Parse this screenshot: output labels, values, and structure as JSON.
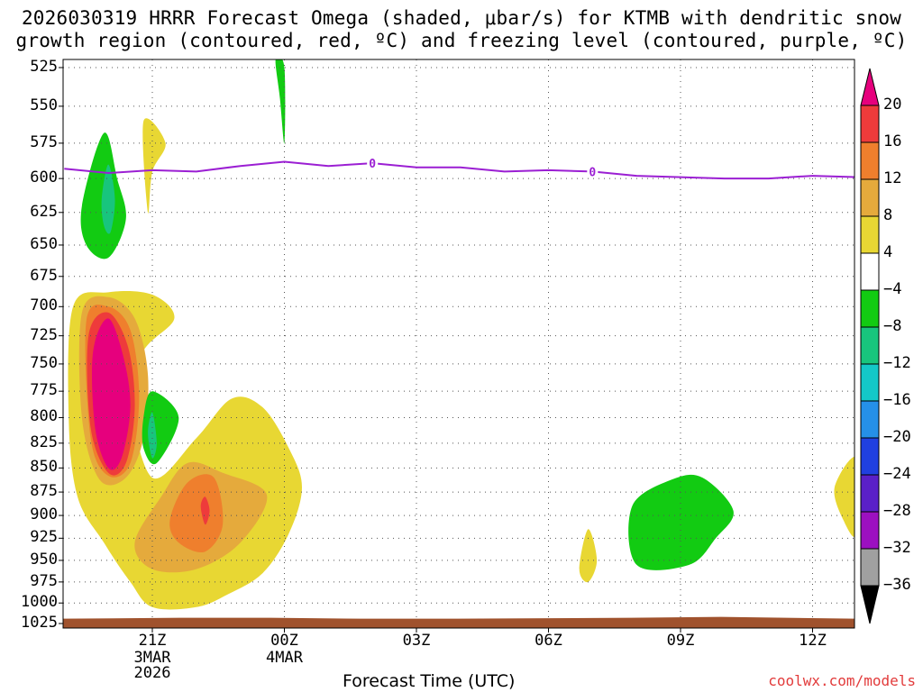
{
  "header": {
    "title_line1": "2026030319 HRRR Forecast Omega (shaded, μbar/s) for KTMB with dendritic snow",
    "title_line2": "growth region (contoured, red, ºC) and freezing level (contoured, purple, ºC)"
  },
  "footer": {
    "xaxis_title": "Forecast Time (UTC)",
    "credit": "coolwx.com/models"
  },
  "chart_data": {
    "type": "heatmap",
    "title": "2026030319 HRRR Forecast Omega (shaded, μbar/s) for KTMB with dendritic snow growth region (contoured, red, ºC) and freezing level (contoured, purple, ºC)",
    "xlabel": "Forecast Time (UTC)",
    "ylabel": "",
    "x_ticks": [
      {
        "hour": 2,
        "label": "21Z",
        "sub1": "3MAR",
        "sub2": "2026"
      },
      {
        "hour": 5,
        "label": "00Z",
        "sub1": "4MAR",
        "sub2": ""
      },
      {
        "hour": 8,
        "label": "03Z",
        "sub1": "",
        "sub2": ""
      },
      {
        "hour": 11,
        "label": "06Z",
        "sub1": "",
        "sub2": ""
      },
      {
        "hour": 14,
        "label": "09Z",
        "sub1": "",
        "sub2": ""
      },
      {
        "hour": 17,
        "label": "12Z",
        "sub1": "",
        "sub2": ""
      }
    ],
    "x_range_hours": [
      0,
      18
    ],
    "y_ticks": [
      525,
      550,
      575,
      600,
      625,
      650,
      675,
      700,
      725,
      750,
      775,
      800,
      825,
      850,
      875,
      900,
      925,
      950,
      975,
      1000,
      1025
    ],
    "y_range_hpa": [
      1025,
      520
    ],
    "y_scale": "log-pressure",
    "grid": true,
    "colorbar": {
      "labels": [
        "20",
        "16",
        "12",
        "8",
        "4",
        "−4",
        "−8",
        "−12",
        "−16",
        "−20",
        "−24",
        "−28",
        "−32",
        "−36"
      ],
      "colors": [
        "#e6007d",
        "#ee3b3b",
        "#ef7f2d",
        "#e5aa3c",
        "#e8d733",
        "#ffffff",
        "#12cb12",
        "#18c57d",
        "#14c8c8",
        "#2590e8",
        "#2040e0",
        "#5a20c8",
        "#9c10c0",
        "#a0a0a0"
      ]
    },
    "fill_colors": {
      "omega_4_8": "#e8d733",
      "omega_8_12": "#e5aa3c",
      "omega_12_16": "#ef7f2d",
      "omega_16_20": "#ee3b3b",
      "omega_gt_20": "#e6007d",
      "omega_m4_m8": "#12cb12",
      "omega_m8_m12": "#18c57d",
      "omega_m12_m16": "#14c8c8",
      "terrain": "#a0522d",
      "freezing_level": "#9b1fd3"
    },
    "freezing_level": {
      "label": "0",
      "hours": [
        0,
        1,
        2,
        3,
        4,
        5,
        6,
        7,
        8,
        9,
        10,
        11,
        12,
        13,
        14,
        15,
        16,
        17,
        18
      ],
      "hpa": [
        593,
        596,
        594,
        595,
        591,
        588,
        591,
        589,
        592,
        592,
        595,
        594,
        595,
        598,
        599,
        600,
        600,
        598,
        599
      ],
      "label_hours": [
        7,
        12
      ]
    },
    "series": [
      {
        "name": "omega_m4_m8",
        "shape": [
          [
            0.4,
            620
          ],
          [
            0.9,
            568
          ],
          [
            1.2,
            600
          ],
          [
            1.4,
            630
          ],
          [
            1.0,
            660
          ],
          [
            0.5,
            650
          ]
        ]
      },
      {
        "name": "omega_m8_m12",
        "shape": [
          [
            0.85,
            615
          ],
          [
            1.0,
            590
          ],
          [
            1.15,
            615
          ],
          [
            1.05,
            640
          ],
          [
            0.9,
            635
          ]
        ]
      },
      {
        "name": "omega_4_8",
        "shape": [
          [
            1.8,
            560
          ],
          [
            2.3,
            575
          ],
          [
            2.0,
            595
          ],
          [
            1.9,
            625
          ]
        ]
      },
      {
        "name": "omega_m4_m8",
        "shape": [
          [
            4.8,
            520
          ],
          [
            5.0,
            525
          ],
          [
            5.0,
            575
          ],
          [
            4.9,
            545
          ]
        ]
      },
      {
        "name": "omega_4_8",
        "shape": [
          [
            0.2,
            700
          ],
          [
            1.0,
            688
          ],
          [
            2.0,
            690
          ],
          [
            2.5,
            710
          ],
          [
            1.8,
            738
          ],
          [
            1.5,
            780
          ],
          [
            2.0,
            860
          ],
          [
            3.0,
            820
          ],
          [
            3.8,
            782
          ],
          [
            4.5,
            790
          ],
          [
            5.1,
            830
          ],
          [
            5.4,
            870
          ],
          [
            5.1,
            920
          ],
          [
            4.5,
            965
          ],
          [
            3.7,
            990
          ],
          [
            3.0,
            1005
          ],
          [
            2.0,
            1005
          ],
          [
            1.5,
            975
          ],
          [
            0.9,
            930
          ],
          [
            0.3,
            880
          ],
          [
            0.1,
            800
          ]
        ]
      },
      {
        "name": "omega_8_12",
        "shape": [
          [
            0.4,
            705
          ],
          [
            1.0,
            692
          ],
          [
            1.6,
            710
          ],
          [
            1.9,
            760
          ],
          [
            1.8,
            820
          ],
          [
            1.4,
            860
          ],
          [
            0.8,
            862
          ],
          [
            0.4,
            800
          ]
        ]
      },
      {
        "name": "omega_8_12",
        "shape": [
          [
            1.6,
            930
          ],
          [
            2.2,
            880
          ],
          [
            2.8,
            845
          ],
          [
            3.6,
            855
          ],
          [
            4.6,
            878
          ],
          [
            4.0,
            930
          ],
          [
            3.0,
            960
          ],
          [
            2.0,
            960
          ]
        ]
      },
      {
        "name": "omega_12_16",
        "shape": [
          [
            0.5,
            712
          ],
          [
            1.0,
            700
          ],
          [
            1.5,
            720
          ],
          [
            1.7,
            780
          ],
          [
            1.5,
            845
          ],
          [
            1.0,
            858
          ],
          [
            0.6,
            820
          ]
        ]
      },
      {
        "name": "omega_12_16",
        "shape": [
          [
            2.4,
            905
          ],
          [
            2.8,
            865
          ],
          [
            3.4,
            860
          ],
          [
            3.6,
            910
          ],
          [
            3.2,
            940
          ],
          [
            2.6,
            930
          ]
        ]
      },
      {
        "name": "omega_16_20",
        "shape": [
          [
            0.55,
            725
          ],
          [
            1.0,
            705
          ],
          [
            1.45,
            735
          ],
          [
            1.6,
            790
          ],
          [
            1.4,
            845
          ],
          [
            1.0,
            855
          ],
          [
            0.6,
            810
          ]
        ]
      },
      {
        "name": "omega_gt_20",
        "shape": [
          [
            0.65,
            740
          ],
          [
            1.0,
            710
          ],
          [
            1.35,
            745
          ],
          [
            1.5,
            790
          ],
          [
            1.3,
            840
          ],
          [
            1.0,
            850
          ],
          [
            0.7,
            810
          ]
        ]
      },
      {
        "name": "omega_16_20",
        "shape": [
          [
            3.1,
            890
          ],
          [
            3.2,
            880
          ],
          [
            3.3,
            895
          ],
          [
            3.2,
            910
          ]
        ]
      },
      {
        "name": "omega_m4_m8",
        "shape": [
          [
            1.8,
            800
          ],
          [
            2.0,
            775
          ],
          [
            2.6,
            800
          ],
          [
            2.1,
            845
          ],
          [
            1.8,
            830
          ]
        ]
      },
      {
        "name": "omega_m8_m12",
        "shape": [
          [
            1.9,
            815
          ],
          [
            2.0,
            795
          ],
          [
            2.1,
            825
          ],
          [
            2.0,
            840
          ]
        ]
      },
      {
        "name": "omega_4_8",
        "shape": [
          [
            11.7,
            960
          ],
          [
            11.9,
            915
          ],
          [
            12.1,
            950
          ],
          [
            11.9,
            975
          ]
        ]
      },
      {
        "name": "omega_m4_m8",
        "shape": [
          [
            12.9,
            890
          ],
          [
            13.8,
            862
          ],
          [
            14.5,
            860
          ],
          [
            15.2,
            895
          ],
          [
            14.8,
            925
          ],
          [
            14.2,
            955
          ],
          [
            13.0,
            955
          ]
        ]
      },
      {
        "name": "omega_4_8",
        "shape": [
          [
            17.5,
            870
          ],
          [
            18.0,
            840
          ],
          [
            18.0,
            920
          ],
          [
            17.7,
            905
          ]
        ]
      }
    ],
    "terrain_hpa": 1018
  }
}
